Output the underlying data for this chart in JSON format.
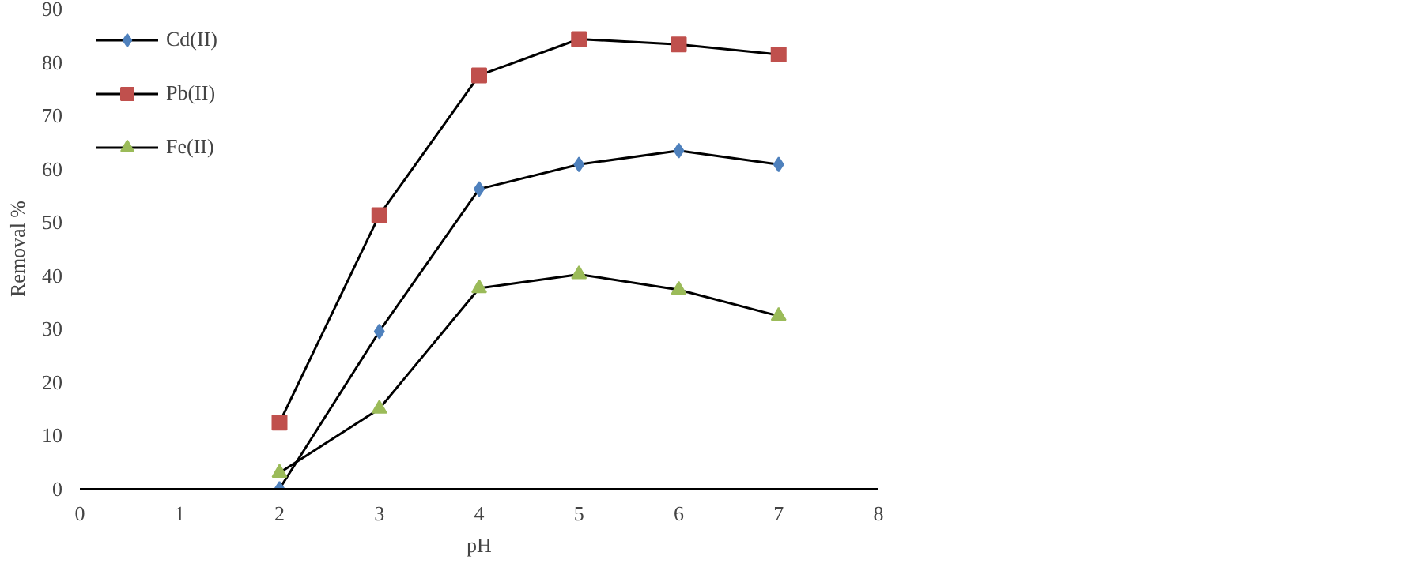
{
  "chart_data": {
    "type": "line",
    "xlabel": "pH",
    "ylabel": "Removal %",
    "x": [
      2,
      3,
      4,
      5,
      6,
      7
    ],
    "series": [
      {
        "name": "Cd(II)",
        "color": "#4f81bd",
        "marker": "diamond",
        "values": [
          0,
          29.5,
          56.2,
          60.8,
          63.4,
          60.8
        ]
      },
      {
        "name": "Pb(II)",
        "color": "#c0504d",
        "marker": "square",
        "values": [
          12.4,
          51.3,
          77.5,
          84.3,
          83.3,
          81.4
        ]
      },
      {
        "name": "Fe(II)",
        "color": "#9bbb59",
        "marker": "triangle",
        "values": [
          3,
          15,
          37.6,
          40.2,
          37.3,
          32.4
        ]
      }
    ],
    "xlim": [
      0,
      8
    ],
    "xticks": [
      0,
      1,
      2,
      3,
      4,
      5,
      6,
      7,
      8
    ],
    "ylim": [
      0,
      90
    ],
    "yticks": [
      0,
      10,
      20,
      30,
      40,
      50,
      60,
      70,
      80,
      90
    ],
    "grid": false,
    "legend": "top left"
  }
}
